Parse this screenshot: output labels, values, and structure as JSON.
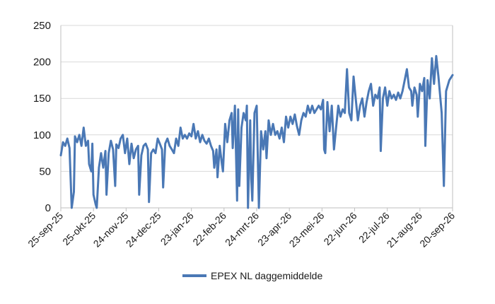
{
  "chart_data": {
    "type": "line",
    "ylim": [
      0,
      250
    ],
    "yticks": [
      0,
      50,
      100,
      150,
      200,
      250
    ],
    "grid": true,
    "legend": "bottom",
    "line_color": "#4a78b5",
    "x_start": "2025-09-25",
    "x_end": "2026-09-20",
    "xticks": [
      {
        "date": "2025-09-25",
        "label": "25-sep-25"
      },
      {
        "date": "2025-10-25",
        "label": "25-okt-25"
      },
      {
        "date": "2025-11-24",
        "label": "24-nov-25"
      },
      {
        "date": "2025-12-24",
        "label": "24-dec-25"
      },
      {
        "date": "2026-01-23",
        "label": "23-jan-26"
      },
      {
        "date": "2026-02-22",
        "label": "22-feb-26"
      },
      {
        "date": "2026-03-24",
        "label": "24-mrt-26"
      },
      {
        "date": "2026-04-23",
        "label": "23-apr-26"
      },
      {
        "date": "2026-05-23",
        "label": "23-mei-26"
      },
      {
        "date": "2026-06-22",
        "label": "22-jun-26"
      },
      {
        "date": "2026-07-22",
        "label": "22-jul-26"
      },
      {
        "date": "2026-08-21",
        "label": "21-aug-26"
      },
      {
        "date": "2026-09-20",
        "label": "20-sep-26"
      }
    ],
    "series": [
      {
        "name": "EPEX NL daggemiddelde",
        "points": [
          [
            "2025-09-25",
            72
          ],
          [
            "2025-09-27",
            90
          ],
          [
            "2025-09-29",
            85
          ],
          [
            "2025-10-01",
            95
          ],
          [
            "2025-10-03",
            82
          ],
          [
            "2025-10-05",
            0
          ],
          [
            "2025-10-07",
            22
          ],
          [
            "2025-10-08",
            98
          ],
          [
            "2025-10-10",
            90
          ],
          [
            "2025-10-12",
            100
          ],
          [
            "2025-10-14",
            85
          ],
          [
            "2025-10-16",
            110
          ],
          [
            "2025-10-18",
            85
          ],
          [
            "2025-10-20",
            92
          ],
          [
            "2025-10-21",
            60
          ],
          [
            "2025-10-23",
            50
          ],
          [
            "2025-10-24",
            88
          ],
          [
            "2025-10-25",
            18
          ],
          [
            "2025-10-27",
            5
          ],
          [
            "2025-10-28",
            0
          ],
          [
            "2025-10-30",
            55
          ],
          [
            "2025-11-01",
            75
          ],
          [
            "2025-11-03",
            55
          ],
          [
            "2025-11-05",
            78
          ],
          [
            "2025-11-06",
            18
          ],
          [
            "2025-11-08",
            75
          ],
          [
            "2025-11-10",
            92
          ],
          [
            "2025-11-12",
            80
          ],
          [
            "2025-11-14",
            30
          ],
          [
            "2025-11-15",
            87
          ],
          [
            "2025-11-17",
            82
          ],
          [
            "2025-11-19",
            95
          ],
          [
            "2025-11-21",
            100
          ],
          [
            "2025-11-23",
            75
          ],
          [
            "2025-11-25",
            95
          ],
          [
            "2025-11-27",
            60
          ],
          [
            "2025-11-29",
            88
          ],
          [
            "2025-12-01",
            68
          ],
          [
            "2025-12-03",
            80
          ],
          [
            "2025-12-05",
            85
          ],
          [
            "2025-12-06",
            18
          ],
          [
            "2025-12-08",
            72
          ],
          [
            "2025-12-10",
            85
          ],
          [
            "2025-12-12",
            88
          ],
          [
            "2025-12-14",
            80
          ],
          [
            "2025-12-15",
            8
          ],
          [
            "2025-12-17",
            75
          ],
          [
            "2025-12-19",
            80
          ],
          [
            "2025-12-21",
            75
          ],
          [
            "2025-12-23",
            95
          ],
          [
            "2025-12-25",
            88
          ],
          [
            "2025-12-27",
            80
          ],
          [
            "2025-12-28",
            28
          ],
          [
            "2025-12-30",
            88
          ],
          [
            "2026-01-01",
            95
          ],
          [
            "2026-01-03",
            85
          ],
          [
            "2026-01-05",
            80
          ],
          [
            "2026-01-07",
            75
          ],
          [
            "2026-01-09",
            95
          ],
          [
            "2026-01-11",
            85
          ],
          [
            "2026-01-13",
            110
          ],
          [
            "2026-01-15",
            95
          ],
          [
            "2026-01-17",
            100
          ],
          [
            "2026-01-19",
            95
          ],
          [
            "2026-01-21",
            102
          ],
          [
            "2026-01-23",
            98
          ],
          [
            "2026-01-25",
            115
          ],
          [
            "2026-01-27",
            95
          ],
          [
            "2026-01-29",
            105
          ],
          [
            "2026-01-31",
            90
          ],
          [
            "2026-02-02",
            100
          ],
          [
            "2026-02-04",
            92
          ],
          [
            "2026-02-06",
            88
          ],
          [
            "2026-02-08",
            95
          ],
          [
            "2026-02-10",
            85
          ],
          [
            "2026-02-12",
            78
          ],
          [
            "2026-02-13",
            55
          ],
          [
            "2026-02-15",
            80
          ],
          [
            "2026-02-16",
            42
          ],
          [
            "2026-02-18",
            85
          ],
          [
            "2026-02-20",
            60
          ],
          [
            "2026-02-21",
            50
          ],
          [
            "2026-02-23",
            115
          ],
          [
            "2026-02-25",
            90
          ],
          [
            "2026-02-27",
            120
          ],
          [
            "2026-03-01",
            130
          ],
          [
            "2026-03-02",
            82
          ],
          [
            "2026-03-04",
            140
          ],
          [
            "2026-03-06",
            10
          ],
          [
            "2026-03-07",
            135
          ],
          [
            "2026-03-08",
            30
          ],
          [
            "2026-03-10",
            110
          ],
          [
            "2026-03-12",
            130
          ],
          [
            "2026-03-14",
            120
          ],
          [
            "2026-03-15",
            140
          ],
          [
            "2026-03-16",
            0
          ],
          [
            "2026-03-18",
            120
          ],
          [
            "2026-03-19",
            40
          ],
          [
            "2026-03-20",
            10
          ],
          [
            "2026-03-22",
            130
          ],
          [
            "2026-03-24",
            140
          ],
          [
            "2026-03-26",
            0
          ],
          [
            "2026-03-28",
            105
          ],
          [
            "2026-03-30",
            80
          ],
          [
            "2026-04-01",
            105
          ],
          [
            "2026-04-02",
            68
          ],
          [
            "2026-04-04",
            120
          ],
          [
            "2026-04-06",
            100
          ],
          [
            "2026-04-08",
            115
          ],
          [
            "2026-04-10",
            100
          ],
          [
            "2026-04-12",
            105
          ],
          [
            "2026-04-14",
            95
          ],
          [
            "2026-04-16",
            110
          ],
          [
            "2026-04-18",
            90
          ],
          [
            "2026-04-20",
            125
          ],
          [
            "2026-04-22",
            110
          ],
          [
            "2026-04-24",
            125
          ],
          [
            "2026-04-26",
            115
          ],
          [
            "2026-04-28",
            128
          ],
          [
            "2026-04-30",
            112
          ],
          [
            "2026-05-02",
            100
          ],
          [
            "2026-05-04",
            120
          ],
          [
            "2026-05-06",
            130
          ],
          [
            "2026-05-08",
            125
          ],
          [
            "2026-05-10",
            140
          ],
          [
            "2026-05-12",
            130
          ],
          [
            "2026-05-14",
            140
          ],
          [
            "2026-05-16",
            130
          ],
          [
            "2026-05-18",
            135
          ],
          [
            "2026-05-20",
            140
          ],
          [
            "2026-05-22",
            135
          ],
          [
            "2026-05-24",
            148
          ],
          [
            "2026-05-25",
            80
          ],
          [
            "2026-05-26",
            75
          ],
          [
            "2026-05-28",
            145
          ],
          [
            "2026-05-30",
            105
          ],
          [
            "2026-06-01",
            140
          ],
          [
            "2026-06-03",
            80
          ],
          [
            "2026-06-05",
            110
          ],
          [
            "2026-06-07",
            140
          ],
          [
            "2026-06-09",
            125
          ],
          [
            "2026-06-11",
            135
          ],
          [
            "2026-06-13",
            130
          ],
          [
            "2026-06-15",
            190
          ],
          [
            "2026-06-17",
            130
          ],
          [
            "2026-06-19",
            120
          ],
          [
            "2026-06-21",
            180
          ],
          [
            "2026-06-23",
            150
          ],
          [
            "2026-06-25",
            120
          ],
          [
            "2026-06-27",
            140
          ],
          [
            "2026-06-29",
            150
          ],
          [
            "2026-07-01",
            125
          ],
          [
            "2026-07-03",
            145
          ],
          [
            "2026-07-05",
            160
          ],
          [
            "2026-07-07",
            170
          ],
          [
            "2026-07-09",
            140
          ],
          [
            "2026-07-11",
            155
          ],
          [
            "2026-07-13",
            150
          ],
          [
            "2026-07-15",
            165
          ],
          [
            "2026-07-16",
            78
          ],
          [
            "2026-07-18",
            150
          ],
          [
            "2026-07-20",
            165
          ],
          [
            "2026-07-22",
            140
          ],
          [
            "2026-07-24",
            160
          ],
          [
            "2026-07-26",
            150
          ],
          [
            "2026-07-28",
            155
          ],
          [
            "2026-07-30",
            148
          ],
          [
            "2026-08-01",
            158
          ],
          [
            "2026-08-03",
            150
          ],
          [
            "2026-08-05",
            160
          ],
          [
            "2026-08-07",
            175
          ],
          [
            "2026-08-09",
            190
          ],
          [
            "2026-08-11",
            165
          ],
          [
            "2026-08-13",
            160
          ],
          [
            "2026-08-14",
            140
          ],
          [
            "2026-08-16",
            165
          ],
          [
            "2026-08-18",
            155
          ],
          [
            "2026-08-19",
            125
          ],
          [
            "2026-08-21",
            170
          ],
          [
            "2026-08-23",
            160
          ],
          [
            "2026-08-25",
            178
          ],
          [
            "2026-08-26",
            85
          ],
          [
            "2026-08-28",
            175
          ],
          [
            "2026-08-30",
            150
          ],
          [
            "2026-09-01",
            205
          ],
          [
            "2026-09-03",
            170
          ],
          [
            "2026-09-05",
            208
          ],
          [
            "2026-09-07",
            180
          ],
          [
            "2026-09-10",
            130
          ],
          [
            "2026-09-12",
            30
          ],
          [
            "2026-09-14",
            160
          ],
          [
            "2026-09-17",
            175
          ],
          [
            "2026-09-20",
            182
          ]
        ]
      }
    ]
  }
}
